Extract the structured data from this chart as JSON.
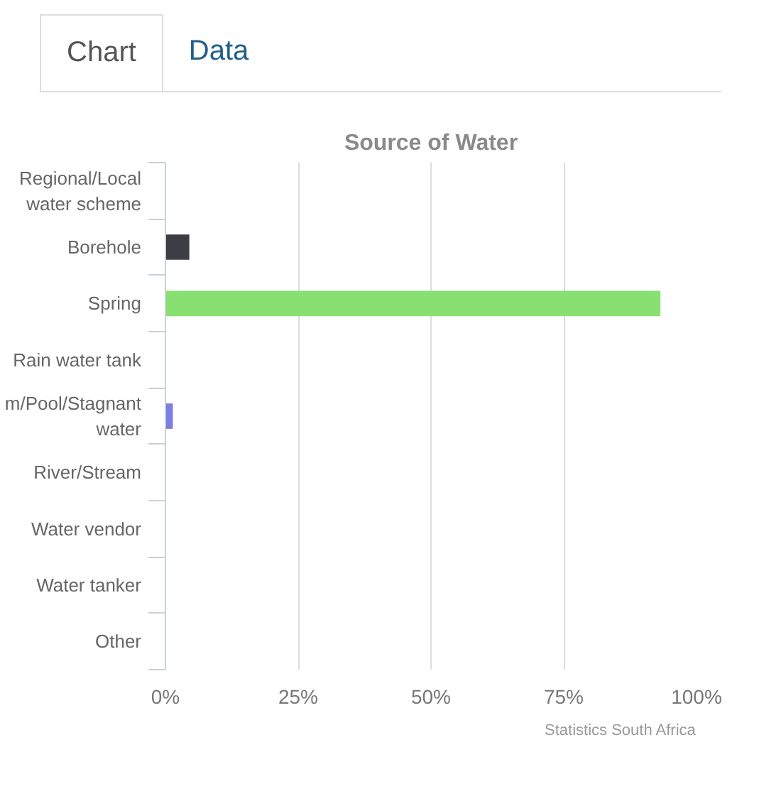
{
  "chart_data": {
    "type": "bar",
    "orientation": "horizontal",
    "title": "Source of Water",
    "categories": [
      "Regional/Local water scheme",
      "Borehole",
      "Spring",
      "Rain water tank",
      "m/Pool/Stagnant water",
      "River/Stream",
      "Water vendor",
      "Water tanker",
      "Other"
    ],
    "values": [
      0,
      4.5,
      93.2,
      0,
      1.4,
      0,
      0,
      0,
      0
    ],
    "colors": [
      "#88e070",
      "#3d3d44",
      "#88e070",
      "#88e070",
      "#7b7fe0",
      "#88e070",
      "#88e070",
      "#88e070",
      "#88e070"
    ],
    "xlim": [
      0,
      100
    ],
    "xticks": [
      {
        "value": 0,
        "label": "0%"
      },
      {
        "value": 25,
        "label": "25%"
      },
      {
        "value": 50,
        "label": "50%"
      },
      {
        "value": 75,
        "label": "75%"
      },
      {
        "value": 100,
        "label": "100%"
      }
    ],
    "grid": "x",
    "annotations": [
      "Chart",
      "Data",
      "Statistics South Africa"
    ]
  }
}
